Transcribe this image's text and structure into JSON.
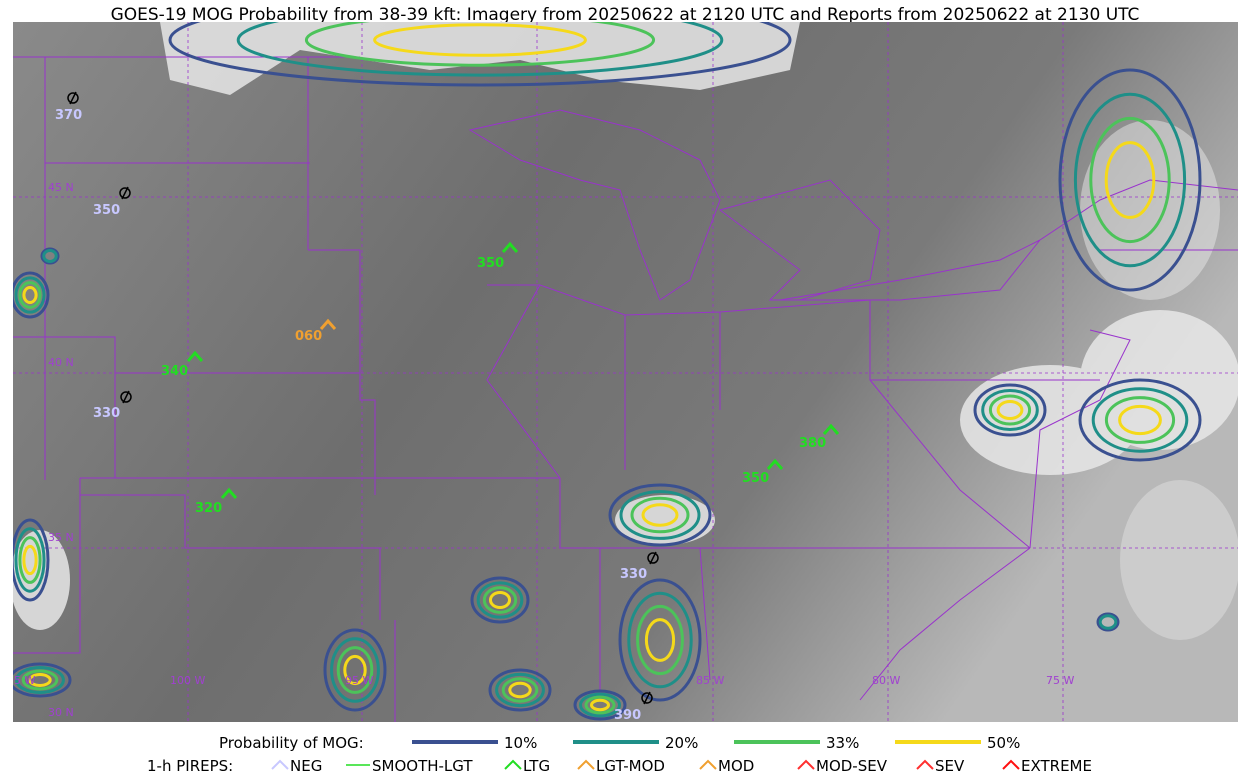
{
  "title": "GOES-19 MOG Probability from 38-39 kft: Imagery from 20250622 at 2120 UTC and Reports from 20250622 at 2130 UTC",
  "map": {
    "grid_labels": [
      "45 N",
      "40 N",
      "35 N",
      "30 N",
      "105 W",
      "100 W",
      "95 W",
      "85 W",
      "80 W",
      "75 W"
    ],
    "pireps": [
      {
        "label": "370",
        "kind": "NEG"
      },
      {
        "label": "350",
        "kind": "NEG"
      },
      {
        "label": "350",
        "kind": "LTG"
      },
      {
        "label": "060",
        "kind": "MOD"
      },
      {
        "label": "340",
        "kind": "LTG"
      },
      {
        "label": "330",
        "kind": "NEG"
      },
      {
        "label": "320",
        "kind": "LTG"
      },
      {
        "label": "350",
        "kind": "LTG"
      },
      {
        "label": "380",
        "kind": "LTG"
      },
      {
        "label": "330",
        "kind": "NEG"
      },
      {
        "label": "390",
        "kind": "NEG"
      }
    ]
  },
  "legend": {
    "probability": {
      "title": "Probability of MOG:",
      "items": [
        "10%",
        "20%",
        "33%",
        "50%"
      ]
    },
    "pireps": {
      "title": "1-h PIREPS:",
      "items": [
        "NEG",
        "SMOOTH-LGT",
        "LTG",
        "LGT-MOD",
        "MOD",
        "MOD-SEV",
        "SEV",
        "EXTREME"
      ]
    }
  }
}
